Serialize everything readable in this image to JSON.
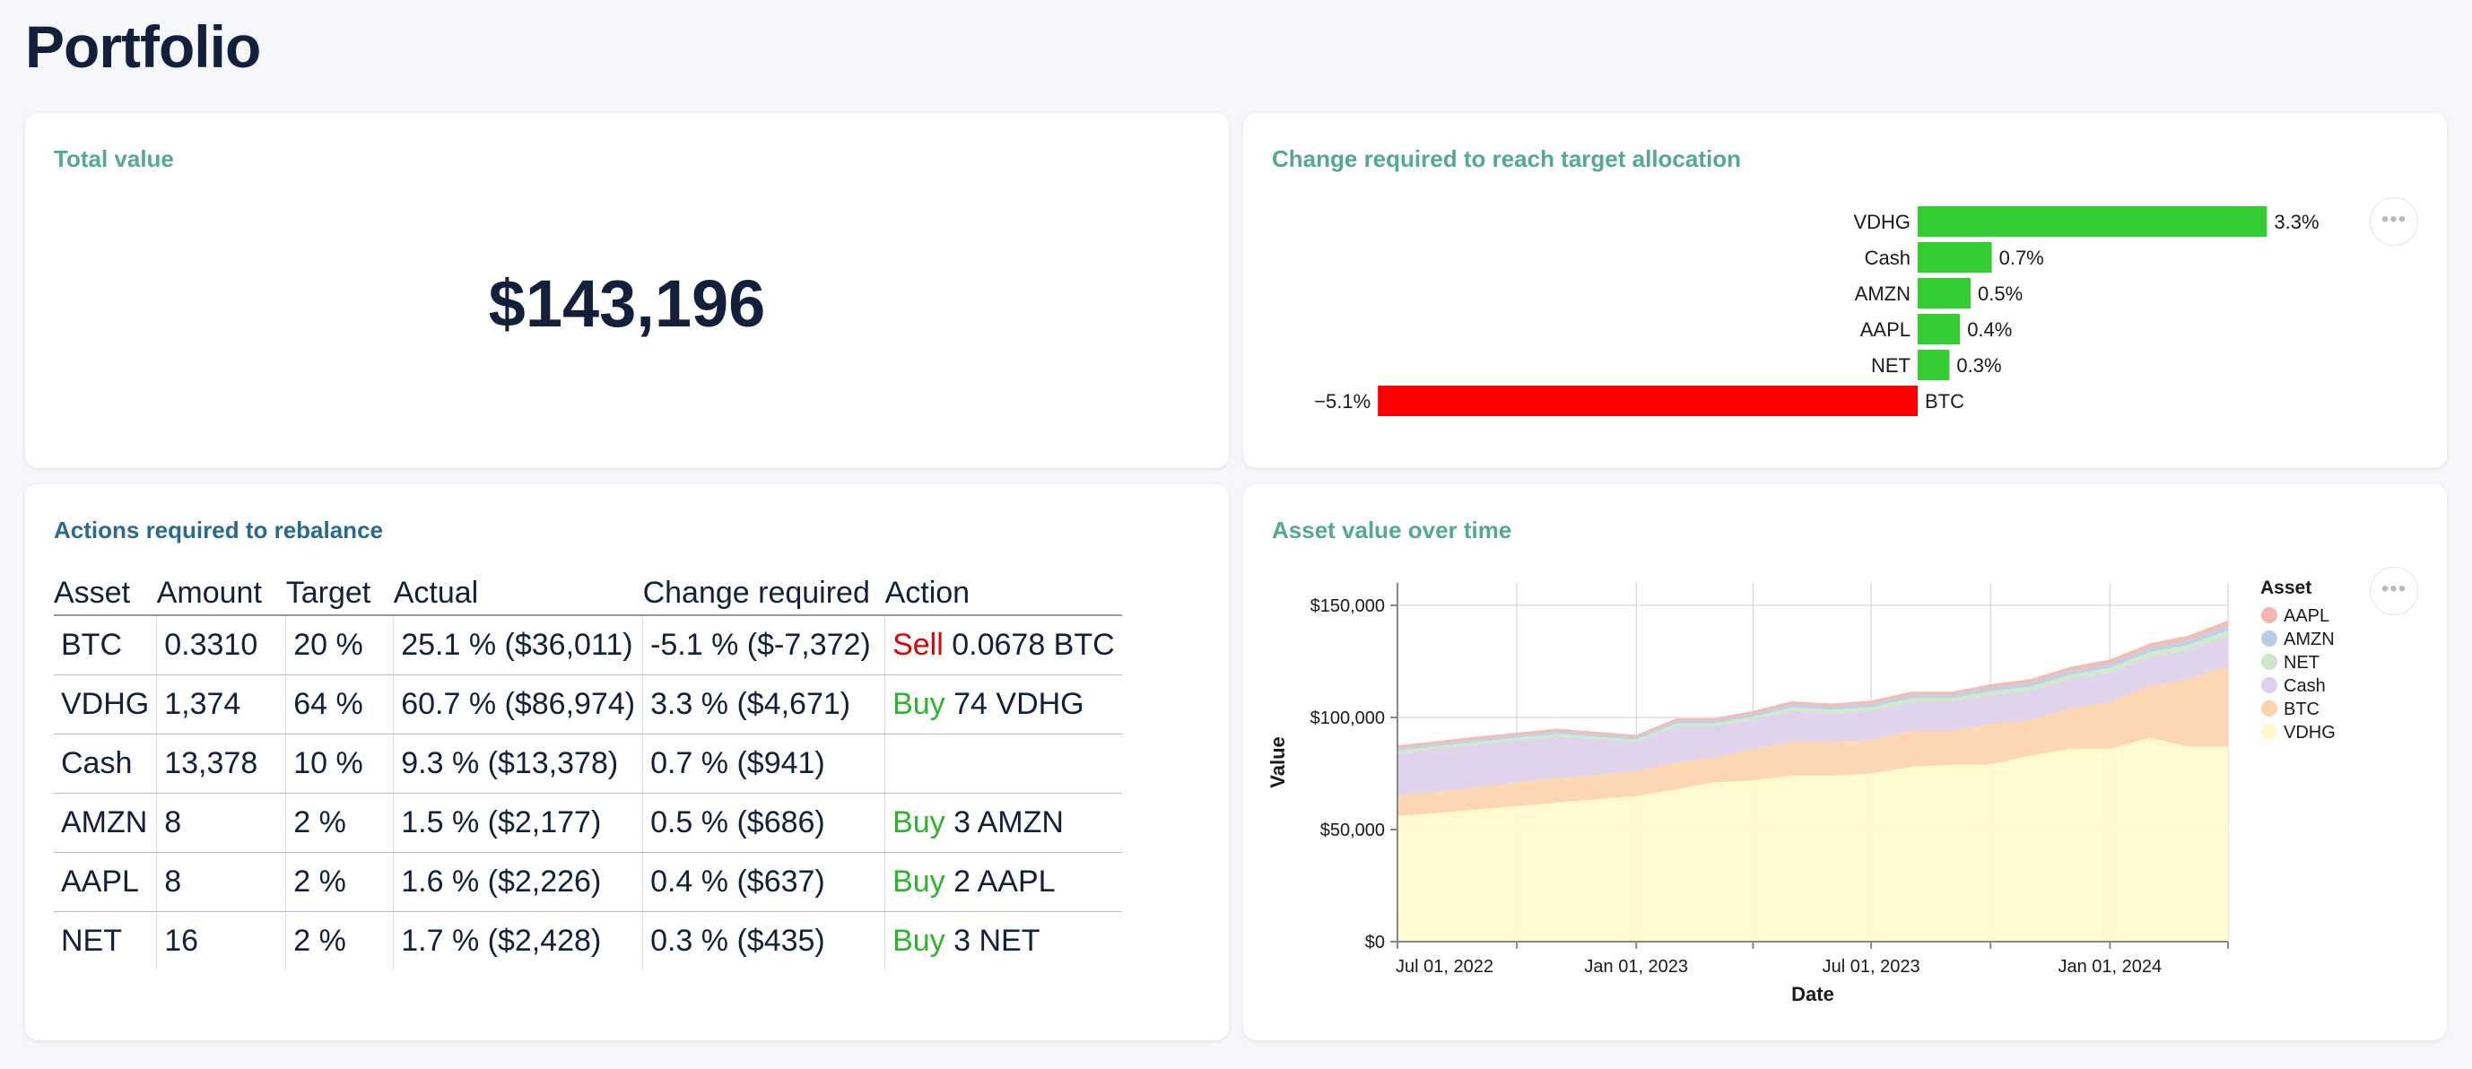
{
  "page": {
    "title": "Portfolio"
  },
  "total": {
    "title": "Total value",
    "value": "$143,196"
  },
  "change": {
    "title": "Change required to reach target allocation"
  },
  "actions": {
    "title": "Actions required to rebalance",
    "columns": [
      "Asset",
      "Amount",
      "Target",
      "Actual",
      "Change required",
      "Action"
    ],
    "rows": [
      {
        "asset": "BTC",
        "amount": "0.3310",
        "target": "20 %",
        "actual": "25.1 % ($36,011)",
        "change": "-5.1 % ($-7,372)",
        "action_verb": "Sell",
        "action_rest": "0.0678 BTC"
      },
      {
        "asset": "VDHG",
        "amount": "1,374",
        "target": "64 %",
        "actual": "60.7 % ($86,974)",
        "change": "3.3 % ($4,671)",
        "action_verb": "Buy",
        "action_rest": "74 VDHG"
      },
      {
        "asset": "Cash",
        "amount": "13,378",
        "target": "10 %",
        "actual": "9.3 % ($13,378)",
        "change": "0.7 % ($941)",
        "action_verb": "",
        "action_rest": ""
      },
      {
        "asset": "AMZN",
        "amount": "8",
        "target": "2 %",
        "actual": "1.5 % ($2,177)",
        "change": "0.5 % ($686)",
        "action_verb": "Buy",
        "action_rest": "3 AMZN"
      },
      {
        "asset": "AAPL",
        "amount": "8",
        "target": "2 %",
        "actual": "1.6 % ($2,226)",
        "change": "0.4 % ($637)",
        "action_verb": "Buy",
        "action_rest": "2 AAPL"
      },
      {
        "asset": "NET",
        "amount": "16",
        "target": "2 %",
        "actual": "1.7 % ($2,428)",
        "change": "0.3 % ($435)",
        "action_verb": "Buy",
        "action_rest": "3 NET"
      }
    ]
  },
  "asset_chart": {
    "title": "Asset value over time"
  },
  "more_glyph": "•••",
  "chart_data": [
    {
      "type": "bar",
      "orientation": "horizontal",
      "title": "Change required to reach target allocation",
      "categories": [
        "VDHG",
        "Cash",
        "AMZN",
        "AAPL",
        "NET",
        "BTC"
      ],
      "values": [
        3.3,
        0.7,
        0.5,
        0.4,
        0.3,
        -5.1
      ],
      "value_labels": [
        "3.3%",
        "0.7%",
        "0.5%",
        "0.4%",
        "0.3%",
        "−5.1%"
      ],
      "colors": {
        "positive": "#33cc33",
        "negative": "#ff0000"
      }
    },
    {
      "type": "area",
      "stacked": true,
      "title": "Asset value over time",
      "xlabel": "Date",
      "ylabel": "Value",
      "ylim": [
        0,
        160000
      ],
      "yticks": [
        0,
        50000,
        100000,
        150000
      ],
      "ytick_labels": [
        "$0",
        "$50,000",
        "$100,000",
        "$150,000"
      ],
      "xtick_labels": [
        "Jul 01, 2022",
        "Jan 01, 2023",
        "Jul 01, 2023",
        "Jan 01, 2024"
      ],
      "xtick_dates": [
        "2022-07-01",
        "2023-01-01",
        "2023-07-01",
        "2024-01-01"
      ],
      "x_range": [
        "2022-07-01",
        "2024-04-01"
      ],
      "grid": true,
      "legend": {
        "title": "Asset",
        "position": "right"
      },
      "x": [
        "2022-07-01",
        "2022-09-01",
        "2022-11-01",
        "2023-01-01",
        "2023-02-01",
        "2023-03-01",
        "2023-04-01",
        "2023-05-01",
        "2023-06-01",
        "2023-07-01",
        "2023-08-01",
        "2023-09-01",
        "2023-10-01",
        "2023-11-01",
        "2023-12-01",
        "2024-01-01",
        "2024-02-01",
        "2024-03-01",
        "2024-04-01"
      ],
      "series": [
        {
          "name": "VDHG",
          "color": "#fffacb",
          "values": [
            56000,
            59000,
            62000,
            65000,
            68000,
            71000,
            72000,
            74000,
            74000,
            75000,
            78000,
            79000,
            79000,
            83000,
            86000,
            86000,
            91000,
            87000,
            87000
          ]
        },
        {
          "name": "BTC",
          "color": "#fdd3ad",
          "values": [
            9000,
            10000,
            11000,
            11000,
            12000,
            11000,
            14000,
            15000,
            15000,
            15000,
            16000,
            15000,
            18000,
            16000,
            18000,
            21000,
            23000,
            30000,
            36000
          ]
        },
        {
          "name": "Cash",
          "color": "#ddd0ec",
          "values": [
            19000,
            19000,
            18500,
            13000,
            16000,
            14000,
            13000,
            14000,
            13000,
            13000,
            13000,
            13000,
            13000,
            13000,
            13000,
            13000,
            13000,
            13000,
            13378
          ]
        },
        {
          "name": "NET",
          "color": "#cce8c8",
          "values": [
            1200,
            1200,
            1200,
            1100,
            1300,
            1300,
            1400,
            1500,
            1500,
            1600,
            1600,
            1600,
            1700,
            1800,
            2000,
            2100,
            2200,
            2300,
            2428
          ]
        },
        {
          "name": "AMZN",
          "color": "#b8cde3",
          "values": [
            1100,
            1100,
            1100,
            1000,
            1100,
            1100,
            1200,
            1300,
            1300,
            1400,
            1400,
            1400,
            1500,
            1600,
            1700,
            1800,
            1900,
            2000,
            2177
          ]
        },
        {
          "name": "AAPL",
          "color": "#f4b5b0",
          "values": [
            1200,
            1200,
            1200,
            1100,
            1200,
            1200,
            1300,
            1400,
            1400,
            1500,
            1500,
            1500,
            1600,
            1700,
            1800,
            1900,
            2000,
            2100,
            2226
          ]
        }
      ]
    }
  ]
}
